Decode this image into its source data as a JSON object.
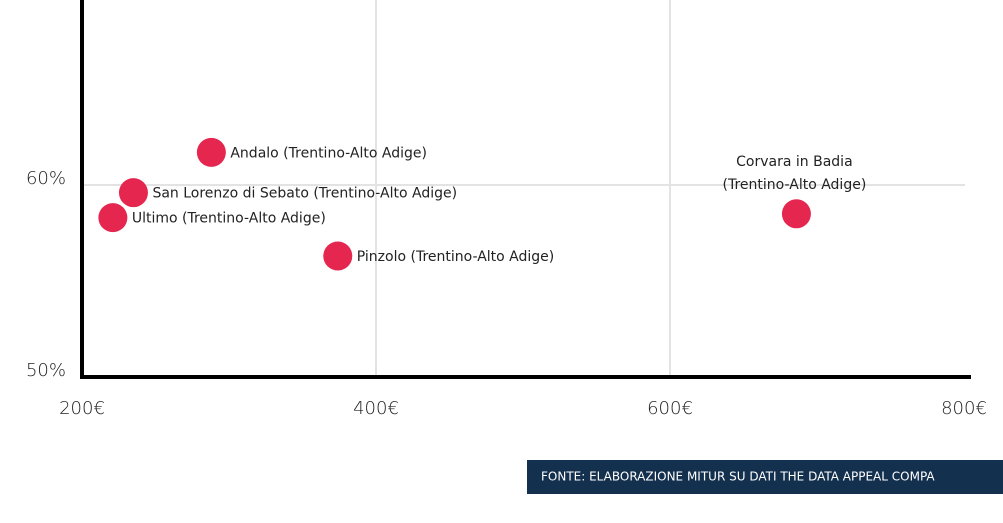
{
  "chart_data": {
    "type": "scatter",
    "x": [
      288,
      235,
      221,
      374,
      686
    ],
    "values": [
      61.7,
      59.6,
      58.3,
      56.3,
      58.5
    ],
    "labels": [
      "Andalo (Trentino-Alto Adige)",
      "San Lorenzo di Sebato (Trentino-Alto Adige)",
      "Ultimo (Trentino-Alto Adige)",
      "Pinzolo (Trentino-Alto Adige)",
      [
        "Corvara in Badia",
        "(Trentino-Alto Adige)"
      ]
    ],
    "color": "#e5264f",
    "xlim": [
      200,
      800
    ],
    "xticks": [
      {
        "value": 200,
        "label": "200€"
      },
      {
        "value": 400,
        "label": "400€"
      },
      {
        "value": 600,
        "label": "600€"
      },
      {
        "value": 800,
        "label": "800€"
      }
    ],
    "ylim": [
      50,
      70
    ],
    "yticks": [
      {
        "value": 50,
        "label": "50%"
      },
      {
        "value": 60,
        "label": "60%"
      }
    ],
    "grid": true,
    "source": "FONTE: ELABORAZIONE MITUR SU DATI THE DATA APPEAL COMPA"
  }
}
